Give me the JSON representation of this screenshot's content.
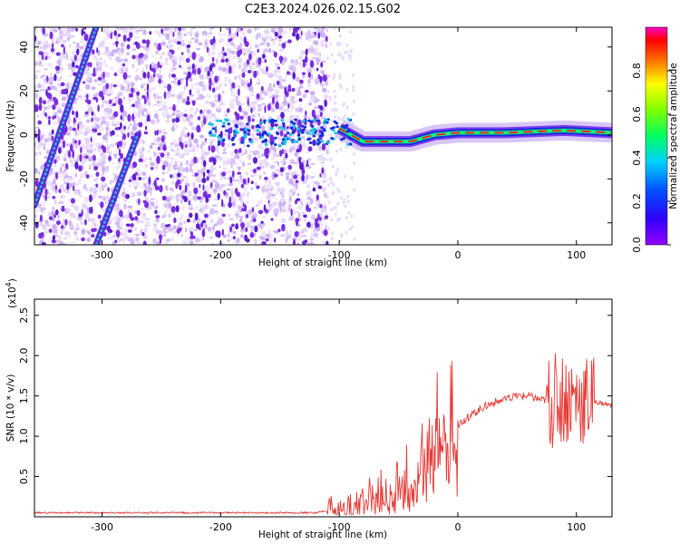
{
  "title": "C2E3.2024.026.02.15.G02",
  "colors": {
    "snr_line": "#e53935",
    "track": "#1a2bd8",
    "scatter": "#7b2ee0",
    "colormap": [
      "#7a00ff",
      "#0000ff",
      "#00c8ff",
      "#00ff40",
      "#ffff00",
      "#ff8000",
      "#ff0000",
      "#ff00a0"
    ]
  },
  "chart_data": [
    {
      "type": "heatmap",
      "xlabel": "Height of straight line (km)",
      "ylabel": "Frequency (Hz)",
      "xlim": [
        -357,
        130
      ],
      "ylim": [
        -50,
        49
      ],
      "xticks": [
        -300,
        -200,
        -100,
        0,
        100
      ],
      "yticks": [
        -40,
        -20,
        0,
        20,
        40
      ],
      "colorbar": {
        "label": "Normalized spectral amplitude",
        "range": [
          0,
          1
        ],
        "ticks": [
          "0.0",
          "0.2",
          "0.4",
          "0.6",
          "0.8"
        ]
      },
      "features": {
        "signal_track": [
          {
            "x": -100,
            "y": 3
          },
          {
            "x": -80,
            "y": -3
          },
          {
            "x": -60,
            "y": -3
          },
          {
            "x": -40,
            "y": -3
          },
          {
            "x": -20,
            "y": 0
          },
          {
            "x": 0,
            "y": 1
          },
          {
            "x": 40,
            "y": 1
          },
          {
            "x": 90,
            "y": 2
          },
          {
            "x": 130,
            "y": 1
          }
        ],
        "diagonal_traces": [
          {
            "x_start": -357,
            "y_start": -32,
            "x_end": -305,
            "y_end": 49
          },
          {
            "x_start": -305,
            "y_start": -50,
            "x_end": -270,
            "y_end": 0
          }
        ],
        "noise_extent_x": [
          -357,
          -110
        ]
      }
    },
    {
      "type": "line",
      "xlabel": "Height of straight line (km)",
      "ylabel": "SNR (10 * v/v)",
      "y_multiplier": "(x10",
      "y_multiplier_exp": "4",
      "xlim": [
        -357,
        130
      ],
      "ylim": [
        0,
        2.7
      ],
      "xticks": [
        -300,
        -200,
        -100,
        0,
        100
      ],
      "yticks": [
        0.5,
        1.0,
        1.5,
        2.0,
        2.5
      ],
      "series": [
        {
          "x": [
            -357,
            -300,
            -200,
            -120,
            -100,
            -80,
            -60,
            -40,
            -30,
            -20,
            -10,
            0,
            10,
            20,
            30,
            40,
            50,
            60,
            70,
            80,
            90,
            100,
            110,
            130
          ],
          "y": [
            0.05,
            0.05,
            0.05,
            0.05,
            0.1,
            0.2,
            0.3,
            0.45,
            0.7,
            1.0,
            1.05,
            1.15,
            1.25,
            1.35,
            1.42,
            1.45,
            1.5,
            1.5,
            1.45,
            1.45,
            1.5,
            1.5,
            1.45,
            1.38
          ]
        }
      ]
    }
  ]
}
